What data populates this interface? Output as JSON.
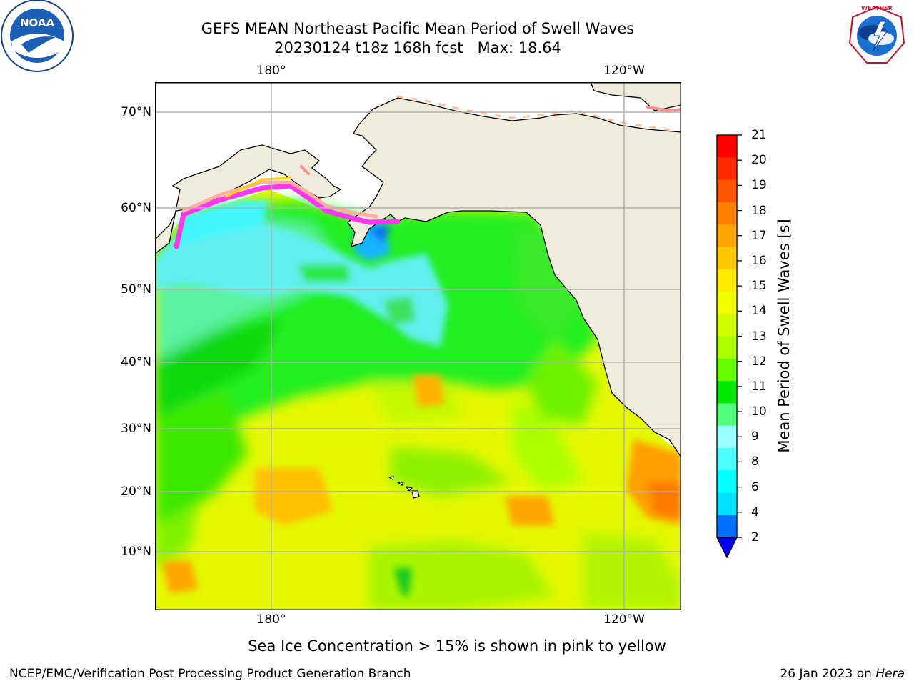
{
  "header": {
    "title_line1": "GEFS MEAN Northeast Pacific Mean Period of Swell Waves",
    "title_line2": "20230124 t18z 168h fcst   Max: 18.64",
    "left_logo": {
      "icon": "noaa-logo-icon",
      "text": "NOAA"
    },
    "right_logo": {
      "icon": "nws-logo-icon",
      "text": "NATIONAL WEATHER SERVICE"
    }
  },
  "map": {
    "lon_labels": [
      "180°",
      "120°W"
    ],
    "lat_labels": [
      "70°N",
      "60°N",
      "50°N",
      "40°N",
      "30°N",
      "20°N",
      "10°N"
    ],
    "colors": {
      "land": "#efecdc",
      "ice_free_water": "#ffffff",
      "grid": "#b0b0b0",
      "coast": "#000000"
    }
  },
  "colorbar": {
    "title": "Mean Period of Swell Waves [s]",
    "ticks": [
      "21",
      "20",
      "19",
      "18",
      "17",
      "16",
      "15",
      "14",
      "13",
      "12",
      "11",
      "10",
      "9",
      "8",
      "6",
      "4",
      "2"
    ],
    "colors_top_to_bottom": [
      "#ff0000",
      "#ff2a00",
      "#ff5500",
      "#ff7f00",
      "#ffa500",
      "#ffc800",
      "#ffeb00",
      "#f2ff00",
      "#d2ff00",
      "#aaff00",
      "#66ff00",
      "#00e800",
      "#52ff7c",
      "#98ffff",
      "#4cffff",
      "#00ffff",
      "#00e0ff",
      "#0070ff"
    ],
    "under_color": "#0000ff"
  },
  "ice_note": "Sea Ice Concentration > 15% is shown in pink to yellow",
  "footer": {
    "left": "NCEP/EMC/Verification Post Processing Product Generation Branch",
    "right_date": "26 Jan 2023 on ",
    "right_host": "Hera"
  }
}
